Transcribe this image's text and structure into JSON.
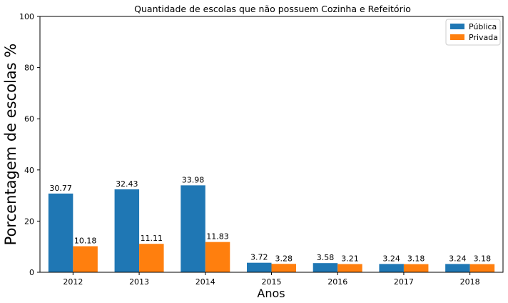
{
  "chart_data": {
    "type": "bar",
    "title": "Quantidade de escolas que não possuem Cozinha e Refeitório",
    "xlabel": "Anos",
    "ylabel": "Porcentagem de escolas %",
    "categories": [
      "2012",
      "2013",
      "2014",
      "2015",
      "2016",
      "2017",
      "2018"
    ],
    "series": [
      {
        "name": "Pública",
        "color": "#1f77b4",
        "values": [
          30.77,
          32.43,
          33.98,
          3.72,
          3.58,
          3.24,
          3.24
        ]
      },
      {
        "name": "Privada",
        "color": "#ff7f0e",
        "values": [
          10.18,
          11.11,
          11.83,
          3.28,
          3.21,
          3.18,
          3.18
        ]
      }
    ],
    "ylim": [
      0,
      100
    ],
    "yticks": [
      0,
      20,
      40,
      60,
      80,
      100
    ],
    "grid": false,
    "legend": "top-right"
  }
}
